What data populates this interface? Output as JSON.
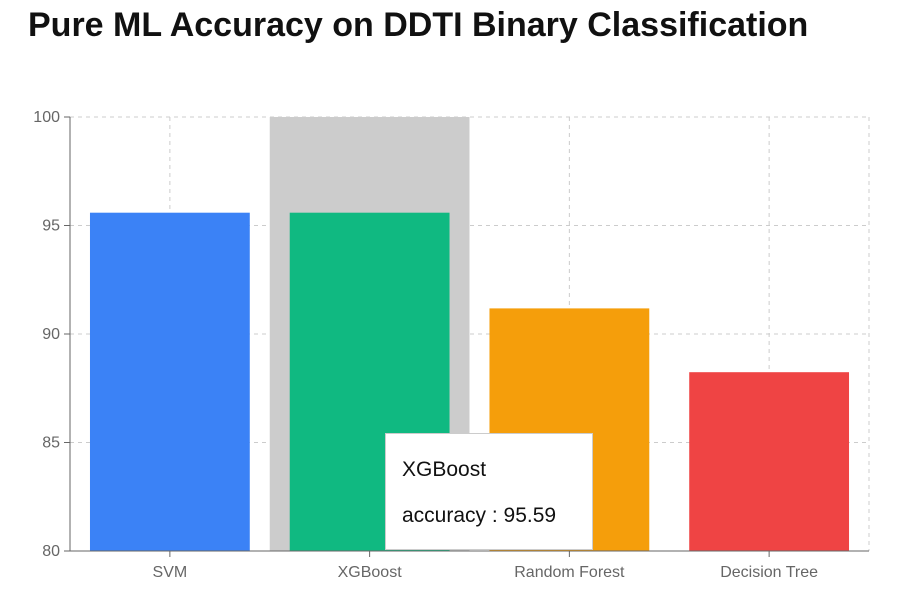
{
  "title": "Pure ML Accuracy on DDTI Binary Classification",
  "chart_data": {
    "type": "bar",
    "title": "Pure ML Accuracy on DDTI Binary Classification",
    "categories": [
      "SVM",
      "XGBoost",
      "Random Forest",
      "Decision Tree"
    ],
    "series": [
      {
        "values": [
          95.59,
          95.59,
          91.18,
          88.24
        ]
      }
    ],
    "colors": [
      "#3b82f6",
      "#10b981",
      "#f59e0b",
      "#ef4444"
    ],
    "ylim": [
      80,
      100
    ],
    "yticks": [
      80,
      85,
      90,
      95,
      100
    ],
    "grid": true,
    "xlabel": "",
    "ylabel": "",
    "highlighted_category": "XGBoost",
    "highlight_color": "#cccccc"
  },
  "tooltip": {
    "name": "XGBoost",
    "metric": "accuracy",
    "separator": " : ",
    "value": "95.59"
  }
}
